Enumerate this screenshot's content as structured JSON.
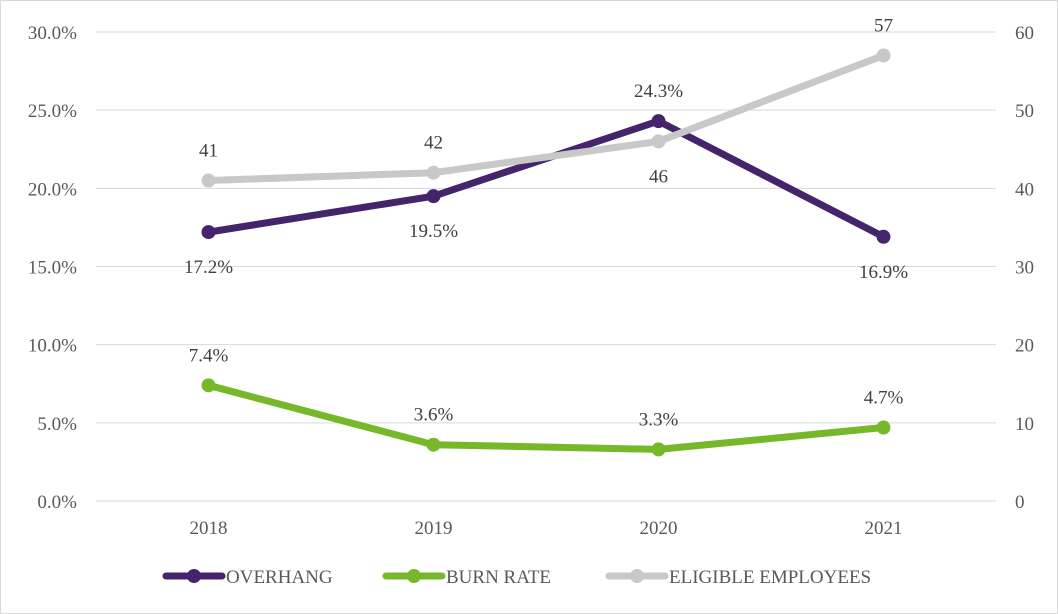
{
  "chart_data": {
    "type": "line",
    "categories": [
      "2018",
      "2019",
      "2020",
      "2021"
    ],
    "left_axis": {
      "ylim": [
        0,
        30
      ],
      "ticks": [
        0,
        5,
        10,
        15,
        20,
        25,
        30
      ],
      "tick_labels": [
        "0.0%",
        "5.0%",
        "10.0%",
        "15.0%",
        "20.0%",
        "25.0%",
        "30.0%"
      ]
    },
    "right_axis": {
      "ylim": [
        0,
        60
      ],
      "ticks": [
        0,
        10,
        20,
        30,
        40,
        50,
        60
      ],
      "tick_labels": [
        "0",
        "10",
        "20",
        "30",
        "40",
        "50",
        "60"
      ]
    },
    "grid": true,
    "legend": "bottom",
    "series": [
      {
        "name": "OVERHANG",
        "axis": "left",
        "color": "#44246b",
        "values": [
          17.2,
          19.5,
          24.3,
          16.9
        ],
        "labels": [
          "17.2%",
          "19.5%",
          "24.3%",
          "16.9%"
        ],
        "label_pos": [
          "below",
          "below",
          "above",
          "below"
        ]
      },
      {
        "name": "BURN RATE",
        "axis": "left",
        "color": "#76b82a",
        "values": [
          7.4,
          3.6,
          3.3,
          4.7
        ],
        "labels": [
          "7.4%",
          "3.6%",
          "3.3%",
          "4.7%"
        ],
        "label_pos": [
          "above",
          "above",
          "above",
          "above"
        ]
      },
      {
        "name": "ELIGIBLE EMPLOYEES",
        "axis": "right",
        "color": "#c8c8c8",
        "values": [
          41,
          42,
          46,
          57
        ],
        "labels": [
          "41",
          "42",
          "46",
          "57"
        ],
        "label_pos": [
          "above",
          "above",
          "below",
          "above"
        ]
      }
    ]
  }
}
